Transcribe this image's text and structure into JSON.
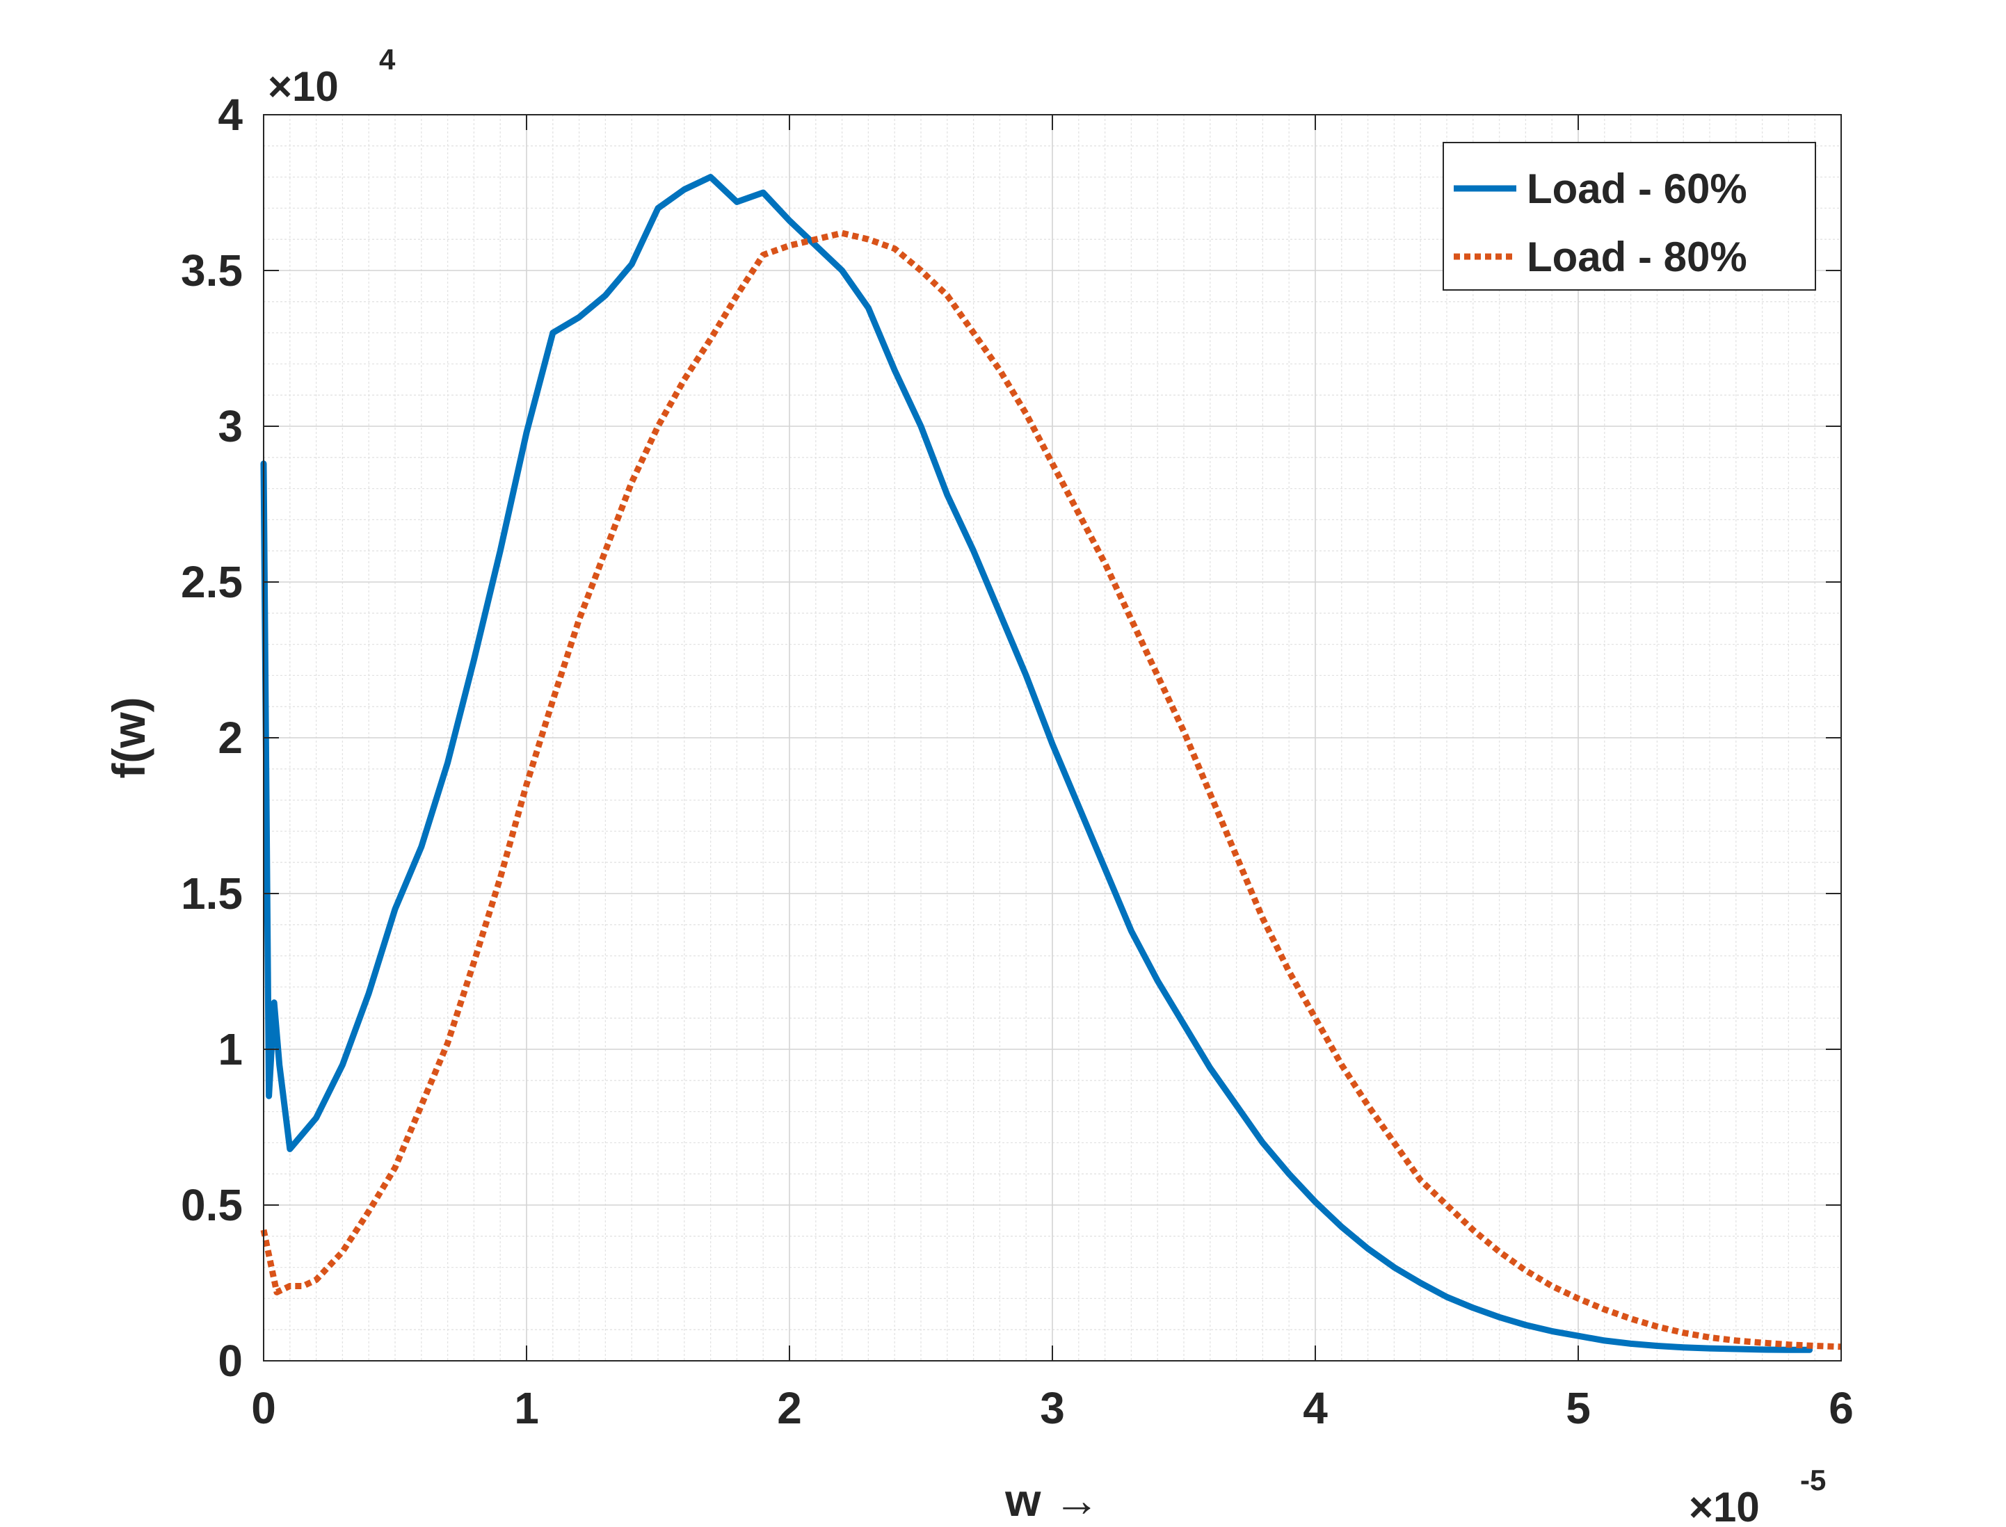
{
  "chart_data": {
    "type": "line",
    "xlabel": "w →",
    "ylabel": "f(w)",
    "x_exponent_label": "×10",
    "x_exponent_power": "-5",
    "y_exponent_label": "×10",
    "y_exponent_power": "4",
    "xlim": [
      0,
      6
    ],
    "ylim": [
      0,
      4
    ],
    "x_ticks": [
      0,
      1,
      2,
      3,
      4,
      5,
      6
    ],
    "x_tick_labels": [
      "0",
      "1",
      "2",
      "3",
      "4",
      "5",
      "6"
    ],
    "y_ticks": [
      0,
      0.5,
      1,
      1.5,
      2,
      2.5,
      3,
      3.5,
      4
    ],
    "y_tick_labels": [
      "0",
      "0.5",
      "1",
      "1.5",
      "2",
      "2.5",
      "3",
      "3.5",
      "4"
    ],
    "x_scale_note": "x values in units of 1e-5",
    "y_scale_note": "y values in units of 1e4",
    "grid": "major and minor",
    "legend_position": "top-right",
    "series": [
      {
        "name": "Load - 60%",
        "color": "#0072BD",
        "style": "solid",
        "x": [
          0.0,
          0.02,
          0.04,
          0.06,
          0.1,
          0.2,
          0.3,
          0.4,
          0.5,
          0.6,
          0.7,
          0.8,
          0.9,
          1.0,
          1.1,
          1.2,
          1.3,
          1.4,
          1.5,
          1.6,
          1.7,
          1.8,
          1.9,
          2.0,
          2.1,
          2.2,
          2.3,
          2.4,
          2.5,
          2.6,
          2.7,
          2.8,
          2.9,
          3.0,
          3.1,
          3.2,
          3.3,
          3.4,
          3.5,
          3.6,
          3.7,
          3.8,
          3.9,
          4.0,
          4.1,
          4.2,
          4.3,
          4.4,
          4.5,
          4.6,
          4.7,
          4.8,
          4.9,
          5.0,
          5.1,
          5.2,
          5.3,
          5.4,
          5.5,
          5.6,
          5.7,
          5.8,
          5.88
        ],
        "y": [
          2.88,
          0.85,
          1.15,
          0.95,
          0.68,
          0.78,
          0.95,
          1.18,
          1.45,
          1.65,
          1.92,
          2.25,
          2.6,
          2.98,
          3.3,
          3.35,
          3.42,
          3.52,
          3.7,
          3.76,
          3.8,
          3.72,
          3.75,
          3.66,
          3.58,
          3.5,
          3.38,
          3.18,
          3.0,
          2.78,
          2.6,
          2.4,
          2.2,
          1.98,
          1.78,
          1.58,
          1.38,
          1.22,
          1.08,
          0.94,
          0.82,
          0.7,
          0.6,
          0.51,
          0.43,
          0.36,
          0.3,
          0.25,
          0.205,
          0.17,
          0.14,
          0.115,
          0.095,
          0.08,
          0.065,
          0.055,
          0.048,
          0.043,
          0.04,
          0.038,
          0.036,
          0.035,
          0.035
        ]
      },
      {
        "name": "Load - 80%",
        "color": "#D95319",
        "style": "dotted",
        "x": [
          0.0,
          0.05,
          0.1,
          0.15,
          0.2,
          0.3,
          0.4,
          0.5,
          0.6,
          0.7,
          0.8,
          0.9,
          1.0,
          1.1,
          1.2,
          1.3,
          1.4,
          1.5,
          1.6,
          1.7,
          1.8,
          1.9,
          2.0,
          2.1,
          2.2,
          2.3,
          2.4,
          2.5,
          2.6,
          2.7,
          2.8,
          2.9,
          3.0,
          3.1,
          3.2,
          3.3,
          3.4,
          3.5,
          3.6,
          3.7,
          3.8,
          3.9,
          4.0,
          4.1,
          4.2,
          4.3,
          4.4,
          4.5,
          4.6,
          4.7,
          4.8,
          4.9,
          5.0,
          5.1,
          5.2,
          5.3,
          5.4,
          5.5,
          5.6,
          5.7,
          5.8,
          5.9,
          6.0
        ],
        "y": [
          0.42,
          0.22,
          0.24,
          0.24,
          0.26,
          0.35,
          0.48,
          0.62,
          0.82,
          1.02,
          1.28,
          1.55,
          1.85,
          2.12,
          2.38,
          2.6,
          2.82,
          3.0,
          3.15,
          3.28,
          3.42,
          3.55,
          3.58,
          3.6,
          3.62,
          3.6,
          3.57,
          3.5,
          3.42,
          3.3,
          3.18,
          3.04,
          2.88,
          2.72,
          2.56,
          2.38,
          2.2,
          2.02,
          1.82,
          1.62,
          1.42,
          1.25,
          1.1,
          0.95,
          0.82,
          0.7,
          0.58,
          0.5,
          0.42,
          0.35,
          0.29,
          0.24,
          0.2,
          0.165,
          0.135,
          0.11,
          0.09,
          0.075,
          0.065,
          0.058,
          0.052,
          0.048,
          0.045
        ]
      }
    ]
  }
}
